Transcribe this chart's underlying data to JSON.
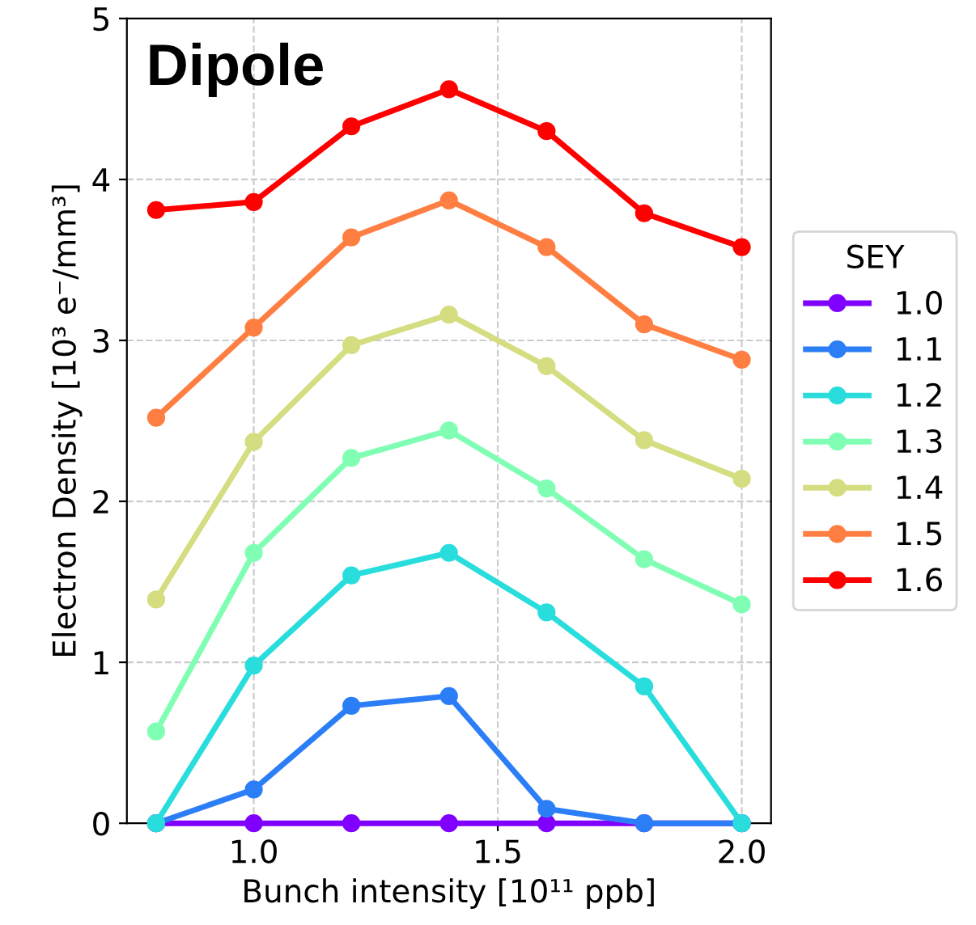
{
  "chart_data": {
    "type": "line",
    "title": "Dipole",
    "xlabel": "Bunch intensity [10¹¹ ppb]",
    "ylabel": "Electron Density [10³ e⁻/mm³]",
    "legend_title": "SEY",
    "x": [
      0.8,
      1.0,
      1.2,
      1.4,
      1.6,
      1.8,
      2.0
    ],
    "series": [
      {
        "name": "1.0",
        "color": "#8000ff",
        "values": [
          0,
          0,
          0,
          0,
          0,
          0,
          0
        ]
      },
      {
        "name": "1.1",
        "color": "#2c7ef7",
        "values": [
          0,
          0.21,
          0.73,
          0.79,
          0.09,
          0,
          0
        ]
      },
      {
        "name": "1.2",
        "color": "#2adddd",
        "values": [
          0,
          0.98,
          1.54,
          1.68,
          1.31,
          0.85,
          0
        ]
      },
      {
        "name": "1.3",
        "color": "#80ffb4",
        "values": [
          0.57,
          1.68,
          2.27,
          2.44,
          2.08,
          1.64,
          1.36
        ]
      },
      {
        "name": "1.4",
        "color": "#d4dd80",
        "values": [
          1.39,
          2.37,
          2.97,
          3.16,
          2.84,
          2.38,
          2.14
        ]
      },
      {
        "name": "1.5",
        "color": "#ff7e41",
        "values": [
          2.52,
          3.08,
          3.64,
          3.87,
          3.58,
          3.1,
          2.88
        ]
      },
      {
        "name": "1.6",
        "color": "#ff0000",
        "values": [
          3.81,
          3.86,
          4.33,
          4.56,
          4.3,
          3.79,
          3.58
        ]
      }
    ],
    "xlim": [
      0.74,
      2.06
    ],
    "ylim": [
      0,
      5
    ],
    "xticks": [
      {
        "value": 1,
        "label": "1.0"
      },
      1.5,
      {
        "value": 2,
        "label": "2.0"
      }
    ],
    "yticks": [
      0,
      1,
      2,
      3,
      4,
      5
    ],
    "grid": true,
    "legend": "right",
    "marker": "circle",
    "line_style": "solid"
  }
}
